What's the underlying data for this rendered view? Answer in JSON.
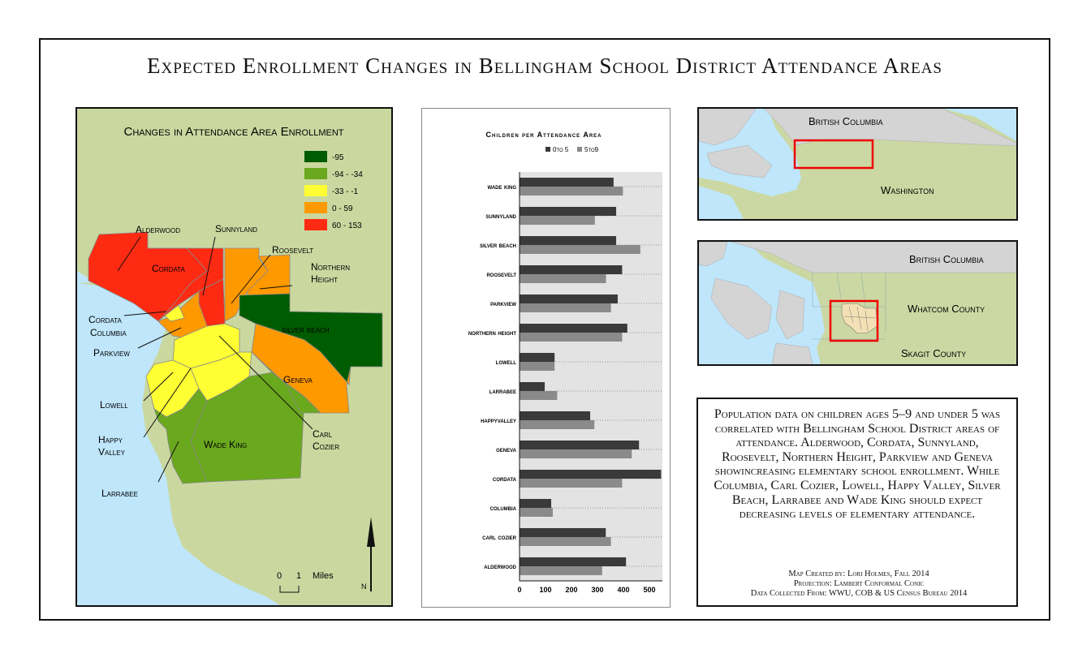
{
  "title": "Expected Enrollment Changes in Bellingham School District Attendance Areas",
  "main_map": {
    "heading": "Changes in Attendance Area Enrollment",
    "legend": [
      {
        "label": "-95",
        "color": "#005c00"
      },
      {
        "label": "-94 - -34",
        "color": "#6aa81e"
      },
      {
        "label": "-33 - -1",
        "color": "#ffff33"
      },
      {
        "label": "0 - 59",
        "color": "#ff9900"
      },
      {
        "label": "60 - 153",
        "color": "#ff2a12"
      }
    ],
    "labels": {
      "alderwood": "Alderwood",
      "sunnyland": "Sunnyland",
      "cordata": "Cordata",
      "roosevelt": "Roosevelt",
      "northern_height_1": "Northern",
      "northern_height_2": "Height",
      "cordata_columbia_1": "Cordata",
      "cordata_columbia_2": "Columbia",
      "silver_beach": "silver beach",
      "parkview": "Parkview",
      "geneva": "Geneva",
      "lowell": "Lowell",
      "happy_valley_1": "Happy",
      "happy_valley_2": "Valley",
      "wade_king": "Wade King",
      "carl_cozier_1": "Carl",
      "carl_cozier_2": "Cozier",
      "larrabee": "Larrabee"
    },
    "scale": {
      "zero": "0",
      "one": "1",
      "unit": "Miles"
    },
    "north": "N"
  },
  "chart_data": {
    "type": "bar",
    "title": "Children per Attendance Area",
    "categories": [
      "wade king",
      "sunnyland",
      "silver beach",
      "roosevelt",
      "parkview",
      "northern height",
      "lowell",
      "larrabee",
      "happyvalley",
      "geneva",
      "cordata",
      "columbia",
      "carl cozier",
      "alderwood"
    ],
    "series": [
      {
        "name": "0to 5",
        "color": "#3a3a3a",
        "values": [
          362,
          372,
          372,
          395,
          378,
          415,
          135,
          97,
          272,
          460,
          545,
          122,
          332,
          410
        ]
      },
      {
        "name": "5to9",
        "color": "#8a8a8a",
        "values": [
          398,
          290,
          465,
          333,
          352,
          395,
          135,
          145,
          288,
          432,
          395,
          128,
          352,
          318
        ]
      }
    ],
    "xlim": [
      0,
      550
    ],
    "xticks": [
      "0",
      "100",
      "200",
      "300",
      "400",
      "500"
    ],
    "grid": true,
    "legend": "top"
  },
  "inset1": {
    "label_top": "British Columbia",
    "label_bottom": "Washington"
  },
  "inset2": {
    "label_bc": "British Columbia",
    "label_whatcom": "Whatcom County",
    "label_skagit": "Skagit County"
  },
  "description": "Population data on children ages 5–9 and under 5 was correlated with Bellingham School District areas of attendance. Alderwood, Cordata, Sunnyland, Roosevelt, Northern Height, Parkview and Geneva showincreasing elementary school enrollment. While Columbia, Carl Cozier, Lowell, Happy Valley, Silver Beach, Larrabee and Wade King should expect decreasing levels of elementary attendance.",
  "credits": [
    "Map Created by: Lori Holmes, Fall 2014",
    "Projection: Lambert Conformal Conic",
    "Data Collected From: WWU, COB & US Census Bureau 2014"
  ]
}
